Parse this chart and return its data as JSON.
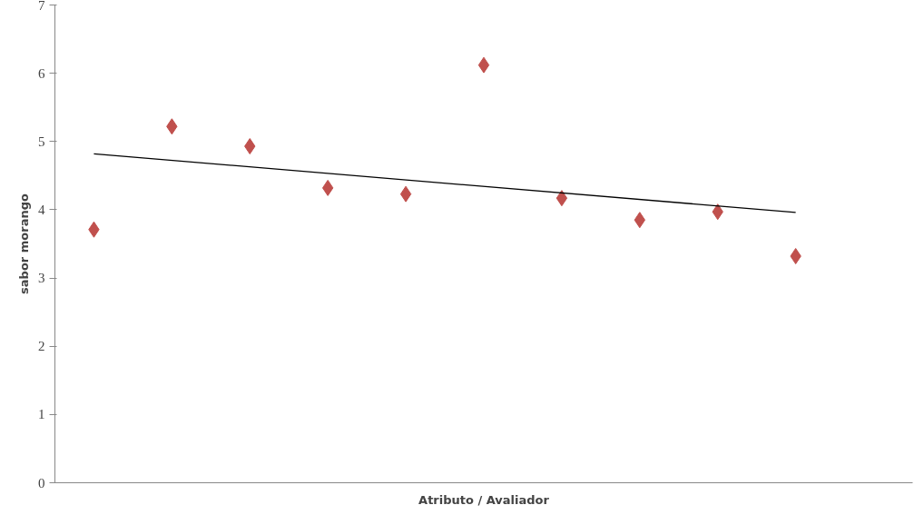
{
  "chart_data": {
    "type": "scatter",
    "xlabel": "Atributo / Avaliador",
    "ylabel": "sabor morango",
    "categories": [
      null,
      null,
      null,
      null,
      null,
      null,
      null,
      null,
      null,
      null,
      null
    ],
    "series": [
      {
        "color": "#c0504d",
        "marker": "diamond",
        "values": [
          3.71,
          5.22,
          4.93,
          4.32,
          4.23,
          6.12,
          4.17,
          3.85,
          3.97,
          3.32,
          null
        ]
      },
      {
        "type": "line",
        "color": "#000000",
        "values": [
          4.82,
          null,
          null,
          null,
          null,
          null,
          null,
          null,
          null,
          3.96,
          null
        ]
      }
    ],
    "ylim": [
      0,
      7
    ],
    "yticks": [
      0,
      1,
      2,
      3,
      4,
      5,
      6,
      7
    ],
    "grid": false,
    "tick_labels": "y"
  }
}
